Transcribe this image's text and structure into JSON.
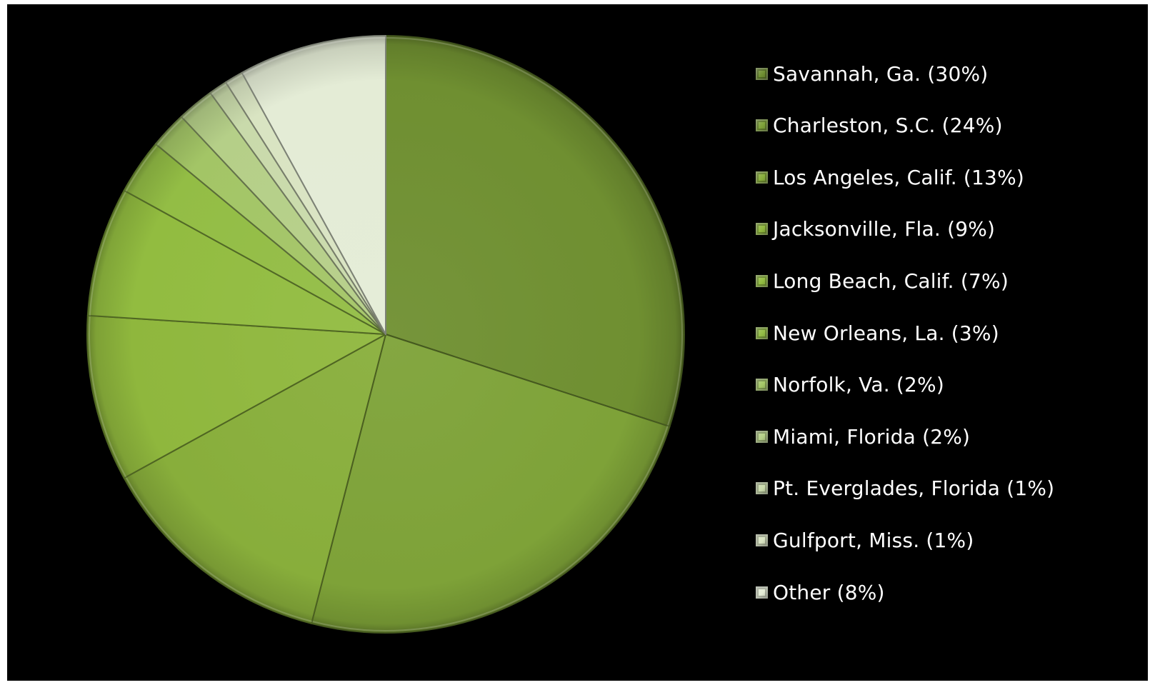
{
  "chart_data": {
    "type": "pie",
    "title": "",
    "start": "top (12 o'clock)",
    "direction": "clockwise",
    "legend_position": "right",
    "slices": [
      {
        "label": "Savannah, Ga. (30%)",
        "value": 30,
        "color": "#6f8f31"
      },
      {
        "label": "Charleston, S.C. (24%)",
        "value": 24,
        "color": "#7ea238"
      },
      {
        "label": "Los Angeles, Calif. (13%)",
        "value": 13,
        "color": "#88ae3b"
      },
      {
        "label": "Jacksonville, Fla. (9%)",
        "value": 9,
        "color": "#8fb73d"
      },
      {
        "label": "Long Beach, Calif. (7%)",
        "value": 7,
        "color": "#92bc40"
      },
      {
        "label": "New Orleans, La. (3%)",
        "value": 3,
        "color": "#93bd45"
      },
      {
        "label": "Norfolk, Va. (2%)",
        "value": 2,
        "color": "#a3c566"
      },
      {
        "label": "Miami, Florida (2%)",
        "value": 2,
        "color": "#b5cf88"
      },
      {
        "label": "Pt. Everglades, Florida (1%)",
        "value": 1,
        "color": "#c9daab"
      },
      {
        "label": "Gulfport, Miss. (1%)",
        "value": 1,
        "color": "#d9e4c2"
      },
      {
        "label": "Other (8%)",
        "value": 8,
        "color": "#e4ecd6"
      }
    ]
  }
}
